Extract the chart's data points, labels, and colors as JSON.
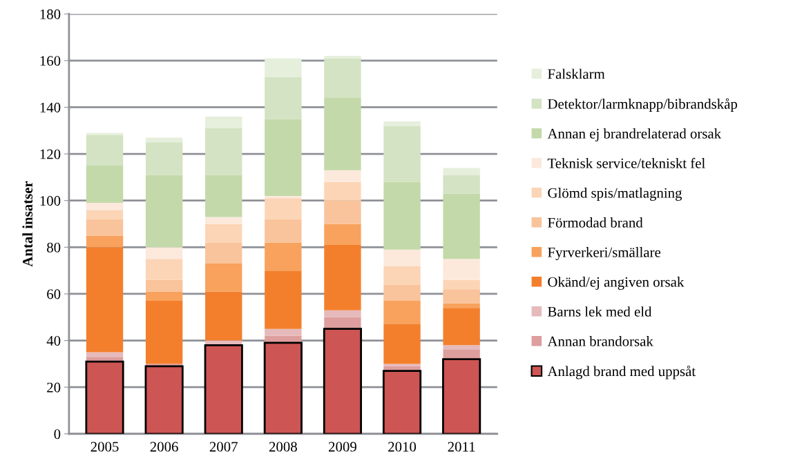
{
  "chart_data": {
    "type": "bar",
    "stacked": true,
    "ylabel": "Antal insatser",
    "categories": [
      "2005",
      "2006",
      "2007",
      "2008",
      "2009",
      "2010",
      "2011"
    ],
    "ylim": [
      0,
      180
    ],
    "yticks": [
      0,
      20,
      40,
      60,
      80,
      100,
      120,
      140,
      160,
      180
    ],
    "grid": "y",
    "legend": "right",
    "series": [
      {
        "name": "Anlagd brand med uppsåt",
        "color": "#cd5553",
        "values": [
          31,
          29,
          38,
          39,
          45,
          27,
          32
        ]
      },
      {
        "name": "Annan brandorsak",
        "color": "#de9e9e",
        "values": [
          2,
          1,
          0,
          3,
          5,
          2,
          4
        ]
      },
      {
        "name": "Barns lek med eld",
        "color": "#e6babb",
        "values": [
          2,
          0,
          2,
          3,
          3,
          1,
          2
        ]
      },
      {
        "name": "Okänd/ej angiven orsak",
        "color": "#f37f2d",
        "values": [
          45,
          27,
          21,
          25,
          28,
          17,
          16
        ]
      },
      {
        "name": "Fyrverkeri/smällare",
        "color": "#f8a25d",
        "values": [
          5,
          4,
          12,
          12,
          9,
          10,
          2
        ]
      },
      {
        "name": "Förmodad brand",
        "color": "#f9c39b",
        "values": [
          7,
          5,
          9,
          10,
          10,
          7,
          6
        ]
      },
      {
        "name": "Glömd spis/matlagning",
        "color": "#fcd5b6",
        "values": [
          4,
          9,
          8,
          9,
          8,
          8,
          4
        ]
      },
      {
        "name": "Teknisk service/tekniskt fel",
        "color": "#fce9dc",
        "values": [
          3,
          5,
          3,
          1,
          5,
          7,
          9
        ]
      },
      {
        "name": "Annan ej brandrelaterad orsak",
        "color": "#c3d9a9",
        "values": [
          16,
          31,
          18,
          33,
          31,
          29,
          28
        ]
      },
      {
        "name": "Detektor/larmknapp/bibrandskåp",
        "color": "#d3e3c3",
        "values": [
          13,
          14,
          20,
          18,
          17,
          24,
          8
        ]
      },
      {
        "name": "Falsklarm",
        "color": "#e6efdc",
        "values": [
          1,
          2,
          5,
          8,
          1,
          2,
          3
        ]
      }
    ]
  }
}
